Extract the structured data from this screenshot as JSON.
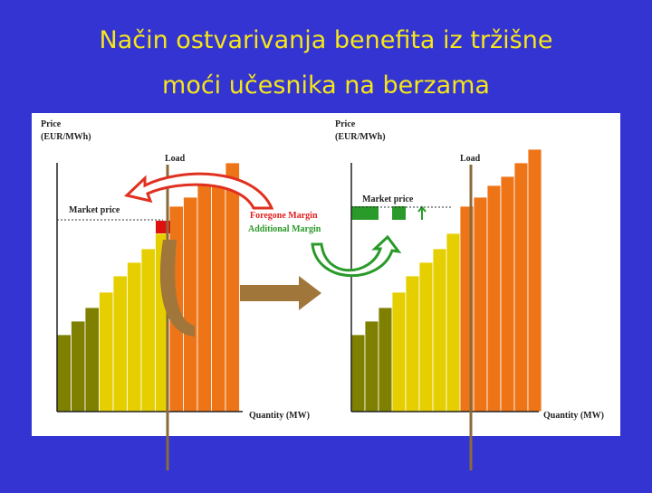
{
  "title": {
    "line1": "Način ostvarivanja benefita iz tržišne",
    "line2": "moći učesnika na berzama"
  },
  "left_chart": {
    "y_axis_label": [
      "Price",
      "(EUR/MWh)"
    ],
    "load_label": "Load",
    "market_price_label": "Market price",
    "foregone_margin_label": "Foregone Margin",
    "additional_margin_label": "Additional Margin",
    "x_axis_label": "Quantity (MW)"
  },
  "right_chart": {
    "y_axis_label": [
      "Price",
      "(EUR/MWh)"
    ],
    "load_label": "Load",
    "market_price_label": "Market price",
    "x_axis_label": "Quantity (MW)"
  }
}
